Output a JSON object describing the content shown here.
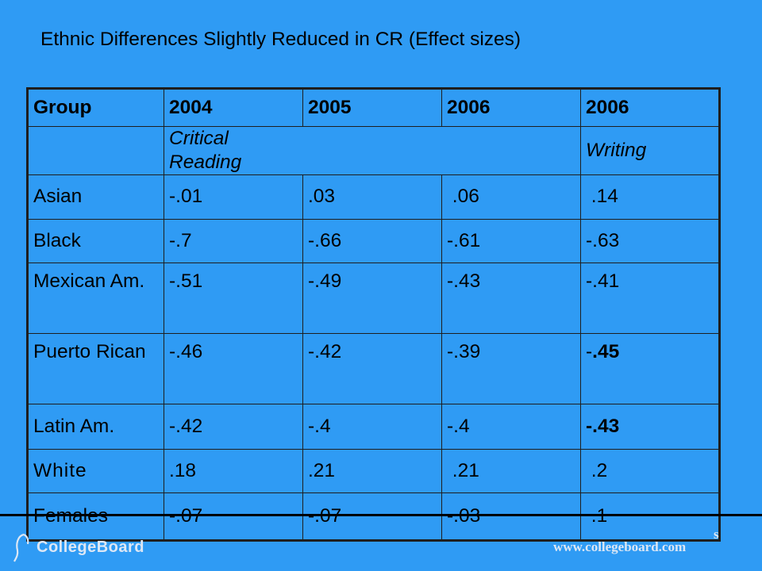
{
  "title": "Ethnic Differences Slightly Reduced in CR (Effect sizes)",
  "chart_data": {
    "type": "table",
    "columns": [
      "Group",
      "2004",
      "2005",
      "2006",
      "2006"
    ],
    "subheaders": [
      "",
      "Critical Reading",
      "Writing"
    ],
    "rows": [
      {
        "group": "Asian",
        "values": [
          "-.01",
          ".03",
          " .06",
          " .14"
        ]
      },
      {
        "group": "Black",
        "values": [
          "-.7",
          "-.66",
          "-.61",
          "-.63"
        ]
      },
      {
        "group": "Mexican Am.",
        "values": [
          "-.51",
          "-.49",
          "-.43",
          "-.41"
        ]
      },
      {
        "group": "Puerto Rican",
        "values": [
          "-.46",
          "-.42",
          "-.39",
          "-.45"
        ]
      },
      {
        "group": "Latin Am.",
        "values": [
          "-.42",
          "-.4",
          "-.4",
          "-.43"
        ]
      },
      {
        "group": "White",
        "values": [
          ".18",
          ".21",
          " .21",
          " .2"
        ]
      },
      {
        "group": "Females",
        "values": [
          "-.07",
          "-.07",
          "-.03",
          " .1"
        ]
      }
    ]
  },
  "footer": {
    "logo_text": "CollegeBoard",
    "url": "www.collegeboard.com",
    "edge_glyph": "s"
  },
  "colors": {
    "background": "#2f9bf4",
    "footer_text": "#dce7f5"
  }
}
